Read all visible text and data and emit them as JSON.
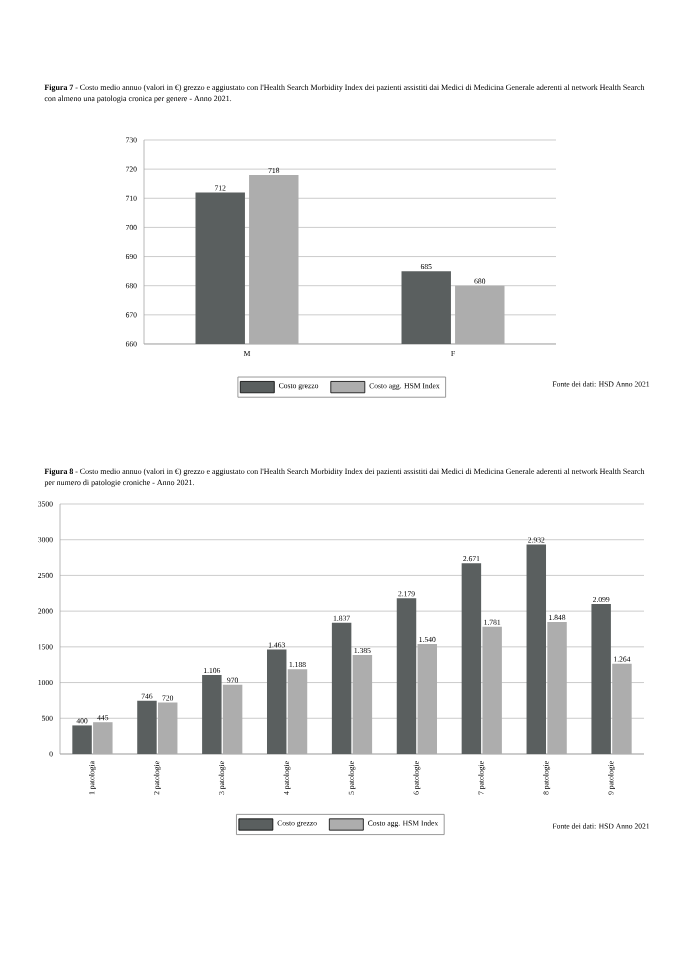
{
  "chart_data": [
    {
      "type": "bar",
      "title": "**Figura 7** - Costo medio annuo (valori in €) grezzo e aggiustato con l'Health Search Morbidity Index dei pazienti assistiti dai Medici di Medicina Generale aderenti al network Health Search con almeno una patologia cronica per genere - Anno 2021.",
      "categories": [
        "M",
        "F"
      ],
      "series": [
        {
          "name": "Costo grezzo",
          "color": "#5a5f5f",
          "values": [
            712,
            685
          ]
        },
        {
          "name": "Costo agg. HSM Index",
          "color": "#adadad",
          "values": [
            718,
            680
          ]
        }
      ],
      "ylim": [
        660,
        730
      ],
      "yticks": [
        660,
        670,
        680,
        690,
        700,
        710,
        720,
        730
      ],
      "grid": "y",
      "legend": "bottom",
      "data_labels": true,
      "annotations": [
        "Fonte dei dati: HSD Anno 2021"
      ]
    },
    {
      "type": "bar",
      "title": "**Figura 8** - Costo medio annuo (valori in €) grezzo e aggiustato con l'Health Search Morbidity Index dei pazienti assistiti dai Medici di Medicina Generale aderenti al network Health Search per numero di patologie croniche - Anno 2021.",
      "categories": [
        "1 patologia",
        "2 patologie",
        "3 patologie",
        "4 patologie",
        "5 patologie",
        "6 patologie",
        "7 patologie",
        "8 patologie",
        "9 patologie"
      ],
      "series": [
        {
          "name": "Costo grezzo",
          "color": "#5a5f5f",
          "values": [
            400,
            746,
            1106,
            1463,
            1837,
            2179,
            2671,
            2932,
            2099
          ],
          "value_labels": [
            "400",
            "746",
            "1.106",
            "1.463",
            "1.837",
            "2.179",
            "2.671",
            "2.932",
            "2.099"
          ]
        },
        {
          "name": "Costo agg. HSM Index",
          "color": "#adadad",
          "values": [
            445,
            720,
            970,
            1188,
            1385,
            1540,
            1781,
            1848,
            1264
          ],
          "value_labels": [
            "445",
            "720",
            "970",
            "1.188",
            "1.385",
            "1.540",
            "1.781",
            "1.848",
            "1.264"
          ]
        }
      ],
      "ylim": [
        0,
        3500
      ],
      "yticks": [
        0,
        500,
        1000,
        1500,
        2000,
        2500,
        3000,
        3500
      ],
      "grid": "y",
      "legend": "bottom",
      "annotations": [
        "Fonte dei dati: HSD Anno 2021"
      ]
    }
  ]
}
